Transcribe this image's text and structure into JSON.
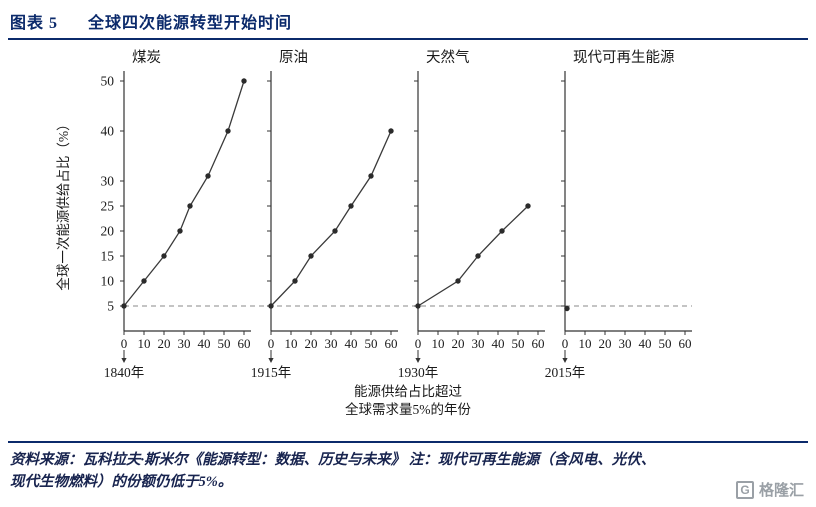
{
  "header": {
    "figure_label": "图表 5",
    "title": "全球四次能源转型开始时间"
  },
  "chart_data": {
    "type": "line",
    "title": "全球四次能源转型开始时间",
    "ylabel": "全球一次能源供给占比（%）",
    "xlabel_lines": [
      "能源供给占比超过",
      "全球需求量5%的年份"
    ],
    "ylim": [
      0,
      52
    ],
    "xlim_per_panel": [
      0,
      60
    ],
    "yticks": [
      5,
      10,
      15,
      20,
      25,
      30,
      40,
      50
    ],
    "xticks": [
      0,
      10,
      20,
      30,
      40,
      50,
      60
    ],
    "grid": false,
    "reference_line": {
      "y": 5,
      "style": "dashed"
    },
    "panels": [
      {
        "label": "煤炭",
        "start_year": "1840年",
        "points": [
          [
            0,
            5
          ],
          [
            10,
            10
          ],
          [
            20,
            15
          ],
          [
            28,
            20
          ],
          [
            33,
            25
          ],
          [
            42,
            31
          ],
          [
            52,
            40
          ],
          [
            60,
            50
          ]
        ]
      },
      {
        "label": "原油",
        "start_year": "1915年",
        "points": [
          [
            0,
            5
          ],
          [
            12,
            10
          ],
          [
            20,
            15
          ],
          [
            32,
            20
          ],
          [
            40,
            25
          ],
          [
            50,
            31
          ],
          [
            60,
            40
          ]
        ]
      },
      {
        "label": "天然气",
        "start_year": "1930年",
        "points": [
          [
            0,
            5
          ],
          [
            20,
            10
          ],
          [
            30,
            15
          ],
          [
            42,
            20
          ],
          [
            55,
            25
          ]
        ]
      },
      {
        "label": "现代可再生能源",
        "start_year": "2015年",
        "points": [
          [
            1,
            4.5
          ]
        ]
      }
    ],
    "colors": {
      "line": "#3a3a3a",
      "point": "#2b2b2b",
      "axis": "#333333",
      "dashed": "#888888",
      "accent": "#0b2a6b"
    }
  },
  "footer": {
    "source_line1": "资料来源：瓦科拉夫·斯米尔《能源转型：数据、历史与未来》 注：现代可再生能源（含风电、光伏、",
    "source_line2": "现代生物燃料）的份额仍低于5%。",
    "logo_letter": "G",
    "logo_text": "格隆汇"
  }
}
